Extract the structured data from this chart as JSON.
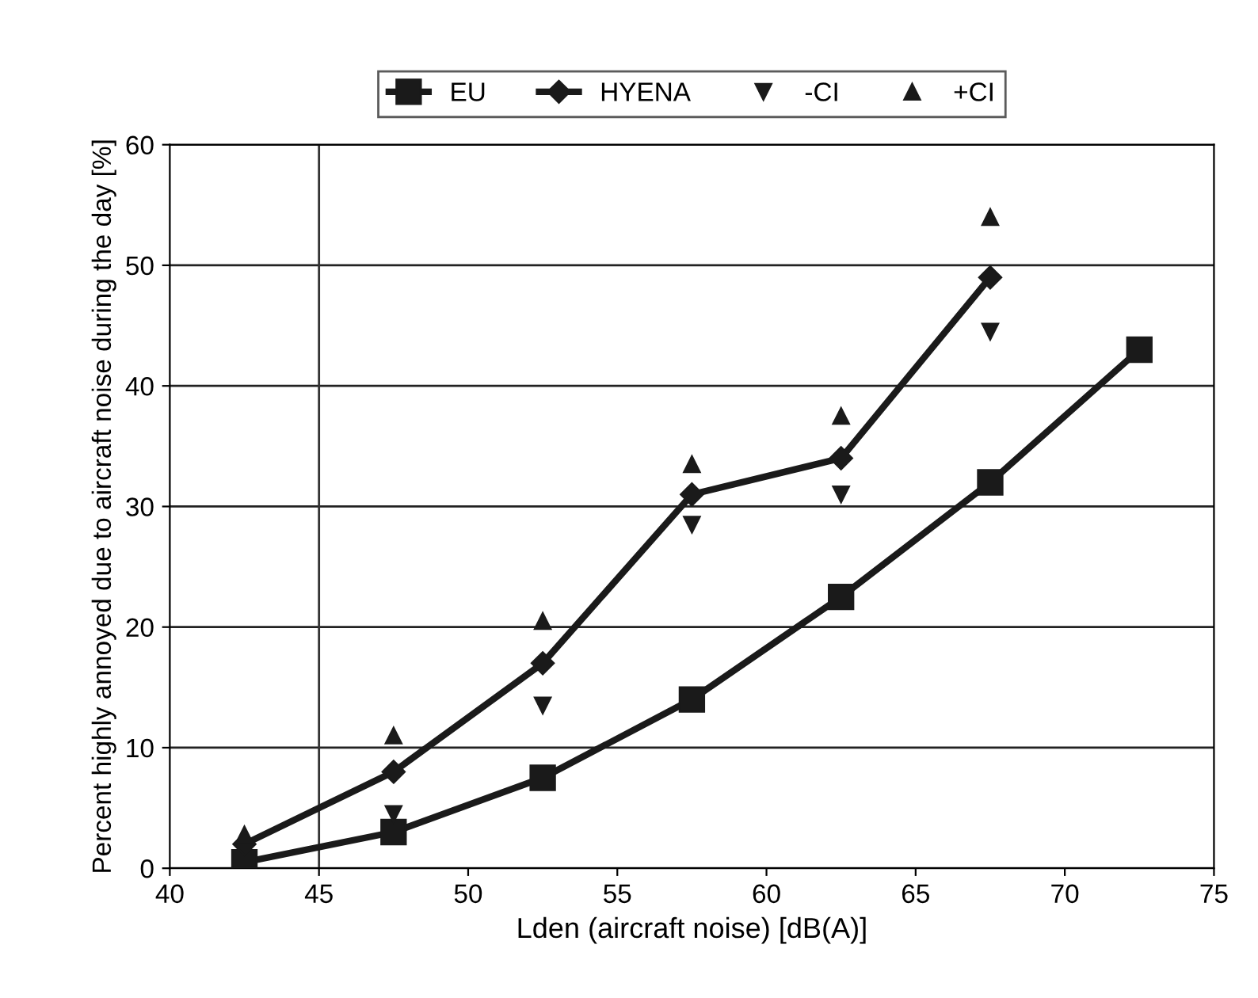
{
  "chart_data": {
    "type": "line",
    "xlabel": "Lden (aircraft noise) [dB(A)]",
    "ylabel": "Percent highly annoyed due to aircraft noise during the day [%]",
    "xlim": [
      40,
      75
    ],
    "xticks": [
      40,
      45,
      50,
      55,
      60,
      65,
      70,
      75
    ],
    "ylim": [
      0,
      60
    ],
    "yticks": [
      0,
      10,
      20,
      30,
      40,
      50,
      60
    ],
    "grid": "y",
    "legend": "top",
    "ref_lines": [
      {
        "axis": "x",
        "value": 45,
        "color": "#333333"
      }
    ],
    "series": [
      {
        "name": "EU",
        "color": "#1a1a1a",
        "marker": "square",
        "x": [
          42.5,
          47.5,
          52.5,
          57.5,
          62.5,
          67.5,
          72.5
        ],
        "values": [
          0.5,
          3,
          7.5,
          14,
          22.5,
          32,
          43
        ]
      },
      {
        "name": "HYENA",
        "color": "#1a1a1a",
        "marker": "diamond",
        "x": [
          42.5,
          47.5,
          52.5,
          57.5,
          62.5,
          67.5
        ],
        "values": [
          2,
          8,
          17,
          31,
          34,
          49
        ]
      },
      {
        "name": "-CI",
        "type": "scatter",
        "color": "#1a1a1a",
        "marker": "triangle_down",
        "x": [
          47.5,
          52.5,
          57.5,
          62.5,
          67.5
        ],
        "values": [
          4.5,
          13.5,
          28.5,
          31,
          44.5
        ]
      },
      {
        "name": "+CI",
        "type": "scatter",
        "color": "#1a1a1a",
        "marker": "triangle",
        "x": [
          42.5,
          47.5,
          52.5,
          57.5,
          62.5,
          67.5
        ],
        "values": [
          2.8,
          11,
          20.5,
          33.5,
          37.5,
          54
        ]
      }
    ]
  }
}
